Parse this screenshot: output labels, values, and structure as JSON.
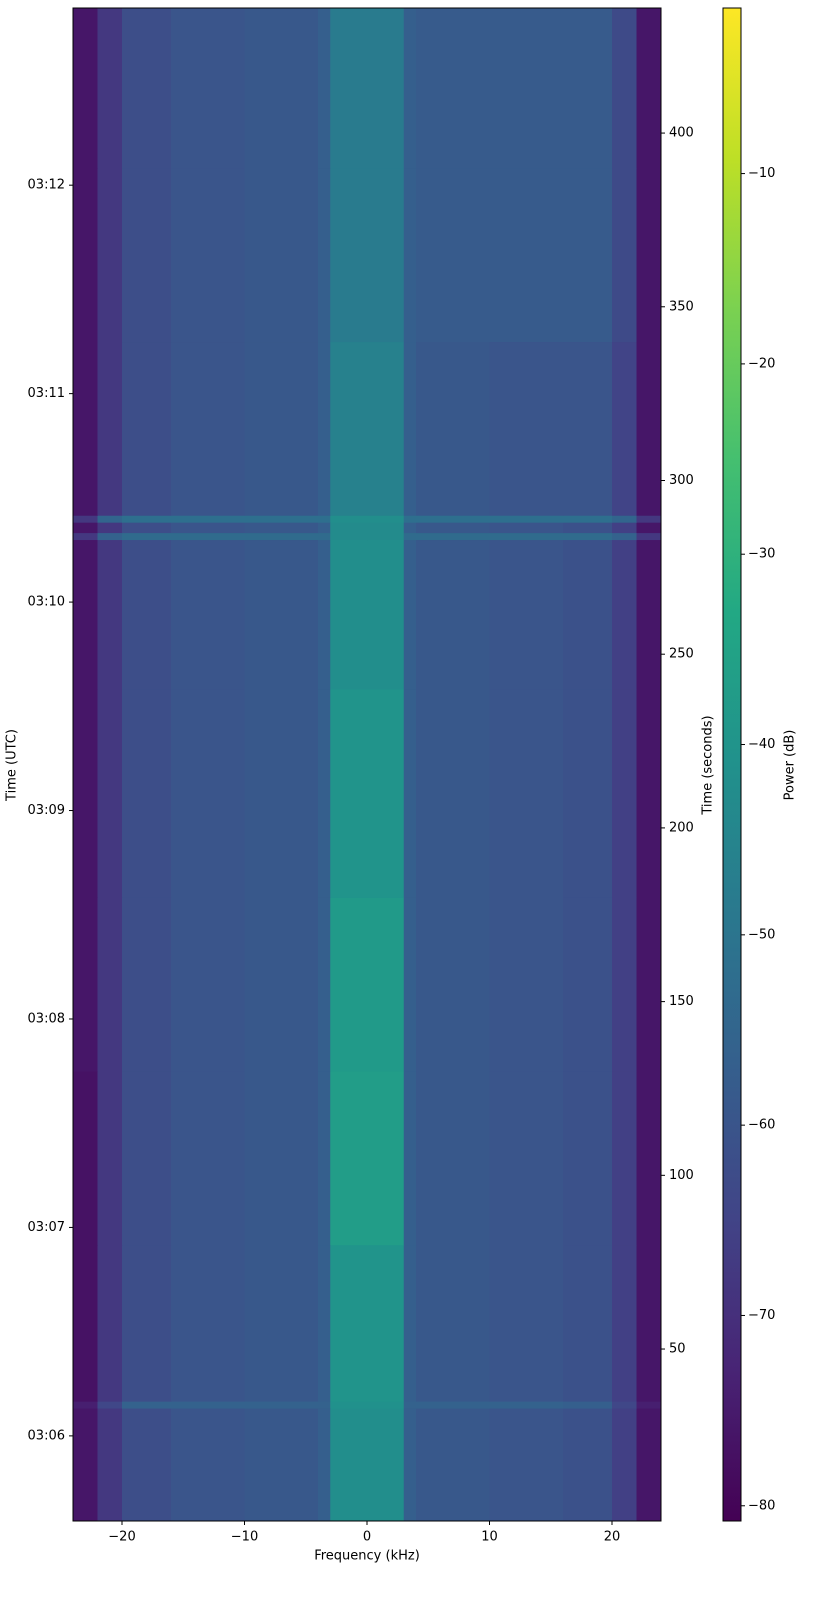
{
  "chart_data": {
    "type": "heatmap",
    "x_label": "Frequency (kHz)",
    "y_label": "Time (UTC)",
    "y2_label": "Time (seconds)",
    "colorbar_label": "Power (dB)",
    "colormap": "viridis",
    "x_edges": [
      -24,
      -22,
      -20,
      -16,
      -10,
      -4,
      -3,
      0,
      3,
      4,
      10,
      16,
      20,
      22,
      24
    ],
    "y_edges": [
      0.5,
      33,
      35,
      80,
      130,
      180,
      240,
      283,
      285,
      288,
      290,
      340,
      390,
      436
    ],
    "z": [
      [
        -76,
        -68,
        -62,
        -60,
        -59,
        -57,
        -42,
        -42,
        -57,
        -59,
        -60,
        -61,
        -66,
        -76
      ],
      [
        -74,
        -64,
        -56,
        -56,
        -56,
        -56,
        -41,
        -41,
        -56,
        -56,
        -56,
        -57,
        -64,
        -74
      ],
      [
        -77,
        -68,
        -62,
        -60,
        -59,
        -57,
        -40,
        -40,
        -57,
        -59,
        -60,
        -61,
        -66,
        -76
      ],
      [
        -77,
        -68,
        -62,
        -60,
        -59,
        -57,
        -37,
        -37,
        -57,
        -59,
        -60,
        -61,
        -66,
        -76
      ],
      [
        -76,
        -68,
        -62,
        -60,
        -59,
        -57,
        -38,
        -38,
        -57,
        -59,
        -60,
        -61,
        -66,
        -76
      ],
      [
        -76,
        -68,
        -62,
        -60,
        -59,
        -57,
        -40,
        -40,
        -57,
        -59,
        -60,
        -61,
        -66,
        -76
      ],
      [
        -76,
        -68,
        -62,
        -60,
        -59,
        -57,
        -42,
        -42,
        -57,
        -59,
        -60,
        -61,
        -66,
        -76
      ],
      [
        -68,
        -56,
        -53,
        -53,
        -53,
        -53,
        -43,
        -43,
        -53,
        -53,
        -53,
        -53,
        -56,
        -68
      ],
      [
        -76,
        -68,
        -62,
        -60,
        -59,
        -57,
        -43,
        -43,
        -57,
        -59,
        -60,
        -61,
        -66,
        -76
      ],
      [
        -68,
        -55,
        -52,
        -52,
        -52,
        -52,
        -42,
        -42,
        -52,
        -52,
        -52,
        -52,
        -55,
        -68
      ],
      [
        -76,
        -68,
        -62,
        -60,
        -59,
        -57,
        -46,
        -46,
        -57,
        -59,
        -60,
        -60,
        -65,
        -76
      ],
      [
        -76,
        -68,
        -62,
        -60,
        -59,
        -57,
        -48,
        -48,
        -57,
        -58,
        -58,
        -58,
        -63,
        -76
      ],
      [
        -76,
        -68,
        -62,
        -60,
        -59,
        -57,
        -48,
        -48,
        -57,
        -58,
        -58,
        -58,
        -63,
        -76
      ]
    ],
    "xlim": [
      -24,
      24
    ],
    "xticks": [
      {
        "value": -20,
        "label": "−20"
      },
      {
        "value": -10,
        "label": "−10"
      },
      0,
      10,
      20
    ],
    "ylim": [
      0.5,
      436
    ],
    "yticks": [
      {
        "value": 25,
        "label": "03:06"
      },
      {
        "value": 85,
        "label": "03:07"
      },
      {
        "value": 145,
        "label": "03:08"
      },
      {
        "value": 205,
        "label": "03:09"
      },
      {
        "value": 265,
        "label": "03:10"
      },
      {
        "value": 325,
        "label": "03:11"
      },
      {
        "value": 385,
        "label": "03:12"
      }
    ],
    "y2lim": [
      0.5,
      436
    ],
    "y2ticks": [
      50,
      100,
      150,
      200,
      250,
      300,
      350,
      400
    ],
    "clim": [
      -80.8,
      -1.3
    ],
    "cticks": [
      {
        "value": -80,
        "label": "−80"
      },
      {
        "value": -70,
        "label": "−70"
      },
      {
        "value": -60,
        "label": "−60"
      },
      {
        "value": -50,
        "label": "−50"
      },
      {
        "value": -40,
        "label": "−40"
      },
      {
        "value": -30,
        "label": "−30"
      },
      {
        "value": -20,
        "label": "−20"
      },
      {
        "value": -10,
        "label": "−10"
      }
    ]
  }
}
